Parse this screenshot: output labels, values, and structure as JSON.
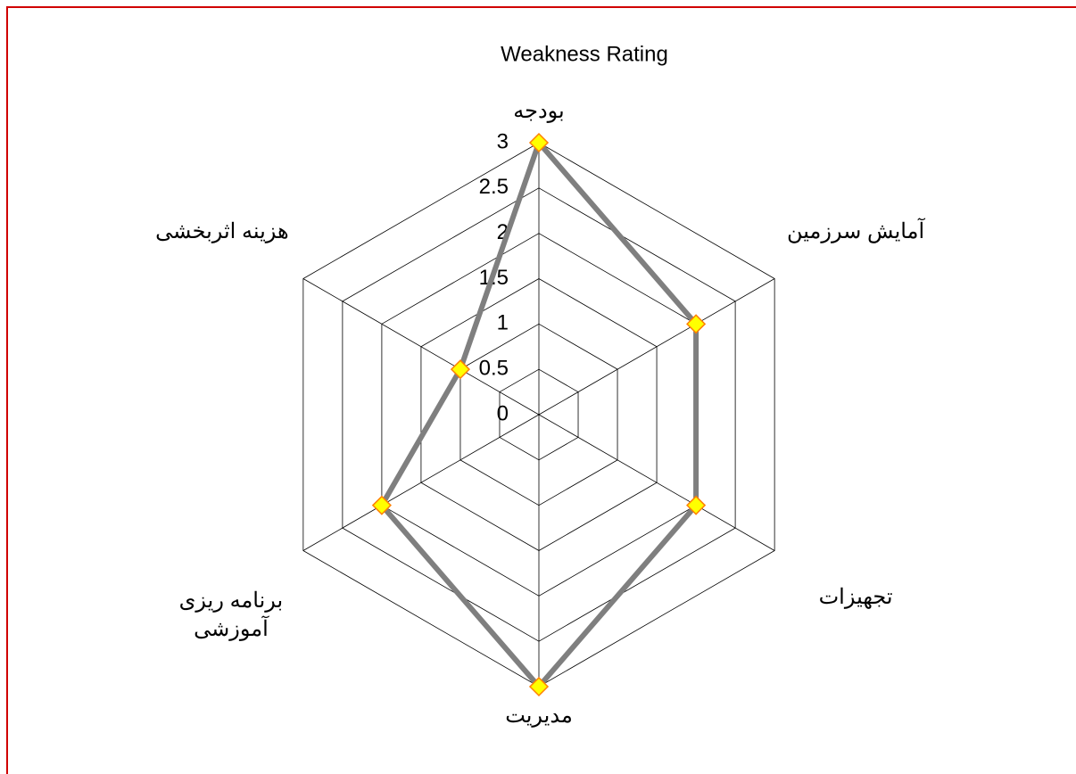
{
  "chart_data": {
    "type": "radar",
    "title": "Weakness Rating",
    "categories": [
      "بودجه",
      "آمایش سرزمین",
      "تجهیزات",
      "مدیریت",
      "برنامه ریزی آموزشی",
      "هزینه اثربخشی"
    ],
    "values": [
      3,
      2,
      2,
      3,
      2,
      1
    ],
    "color": "#7f7f7f",
    "marker_color": "#ffff00",
    "ylim": [
      0,
      3
    ],
    "yticks": [
      0,
      0.5,
      1,
      1.5,
      2,
      2.5,
      3
    ],
    "grid": true
  }
}
